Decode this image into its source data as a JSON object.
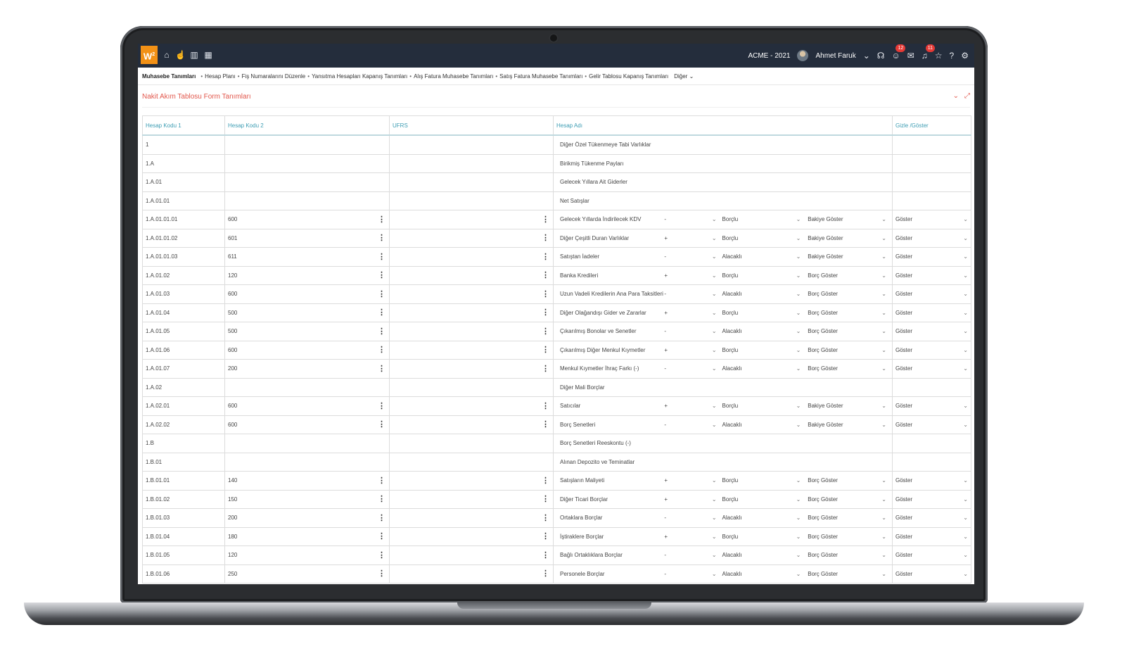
{
  "topbar": {
    "logo": "W",
    "company": "ACME - 2021",
    "user": "Ahmet Faruk",
    "badge_notifications": "12",
    "badge_messages": "11"
  },
  "nav": {
    "first": "Muhasebe Tanımları",
    "items": [
      "Hesap Planı",
      "Fiş Numaralarını Düzenle",
      "Yansıtma Hesapları Kapanış Tanımları",
      "Alış Fatura Muhasebe Tanımları",
      "Satış Fatura Muhasebe Tanımları",
      "Gelir Tablosu Kapanış Tanımları"
    ],
    "more": "Diğer"
  },
  "form": {
    "title": "Nakit Akım Tablosu Form Tanımları"
  },
  "table": {
    "headers": [
      "Hesap Kodu 1",
      "Hesap Kodu 2",
      "UFRS",
      "Hesap Adı",
      "Gizle /Göster"
    ],
    "rows": [
      {
        "k1": "1",
        "adi": "Diğer Özel Tükenmeye Tabi Varlıklar"
      },
      {
        "k1": "1.A",
        "adi": "Birikmiş Tükenme Payları"
      },
      {
        "k1": "1.A.01",
        "adi": "Gelecek Yıllara Ait Giderler"
      },
      {
        "k1": "1.A.01.01",
        "adi": "Net Satışlar"
      },
      {
        "k1": "1.A.01.01.01",
        "k2": "600",
        "adi": "Gelecek Yıllarda İndirilecek KDV",
        "sign": "-",
        "bal": "Borçlu",
        "show": "Bakiye Göster",
        "gizle": "Göster"
      },
      {
        "k1": "1.A.01.01.02",
        "k2": "601",
        "adi": "Diğer Çeşitli Duran Varlıklar",
        "sign": "+",
        "bal": "Borçlu",
        "show": "Bakiye Göster",
        "gizle": "Göster"
      },
      {
        "k1": "1.A.01.01.03",
        "k2": "611",
        "adi": "Satıştan İadeler",
        "sign": "-",
        "bal": "Alacaklı",
        "show": "Bakiye Göster",
        "gizle": "Göster"
      },
      {
        "k1": "1.A.01.02",
        "k2": "120",
        "adi": "Banka Kredileri",
        "sign": "+",
        "bal": "Borçlu",
        "show": "Borç Göster",
        "gizle": "Göster"
      },
      {
        "k1": "1.A.01.03",
        "k2": "600",
        "adi": "Uzun Vadeli Kredilerin Ana Para Taksitleri ve",
        "sign": "-",
        "bal": "Alacaklı",
        "show": "Borç Göster",
        "gizle": "Göster"
      },
      {
        "k1": "1.A.01.04",
        "k2": "500",
        "adi": "Diğer Olağandışı Gider ve Zararlar",
        "sign": "+",
        "bal": "Borçlu",
        "show": "Borç Göster",
        "gizle": "Göster"
      },
      {
        "k1": "1.A.01.05",
        "k2": "500",
        "adi": "Çıkarılmış Bonolar ve Senetler",
        "sign": "-",
        "bal": "Alacaklı",
        "show": "Borç Göster",
        "gizle": "Göster"
      },
      {
        "k1": "1.A.01.06",
        "k2": "600",
        "adi": "Çıkarılmış Diğer Menkul Kıymetler",
        "sign": "+",
        "bal": "Borçlu",
        "show": "Borç Göster",
        "gizle": "Göster"
      },
      {
        "k1": "1.A.01.07",
        "k2": "200",
        "adi": "Menkul Kıymetler İhraç Farkı (-)",
        "sign": "-",
        "bal": "Alacaklı",
        "show": "Borç Göster",
        "gizle": "Göster"
      },
      {
        "k1": "1.A.02",
        "adi": "Diğer Mali Borçlar"
      },
      {
        "k1": "1.A.02.01",
        "k2": "600",
        "adi": "Satıcılar",
        "sign": "+",
        "bal": "Borçlu",
        "show": "Bakiye Göster",
        "gizle": "Göster"
      },
      {
        "k1": "1.A.02.02",
        "k2": "600",
        "adi": "Borç Senetleri",
        "sign": "-",
        "bal": "Alacaklı",
        "show": "Bakiye Göster",
        "gizle": "Göster"
      },
      {
        "k1": "1.B",
        "adi": "Borç Senetleri Reeskontu (-)"
      },
      {
        "k1": "1.B.01",
        "adi": "Alınan Depozito ve Teminatlar"
      },
      {
        "k1": "1.B.01.01",
        "k2": "140",
        "adi": "Satışların Maliyeti",
        "sign": "+",
        "bal": "Borçlu",
        "show": "Borç Göster",
        "gizle": "Göster"
      },
      {
        "k1": "1.B.01.02",
        "k2": "150",
        "adi": "Diğer Ticari Borçlar",
        "sign": "+",
        "bal": "Borçlu",
        "show": "Borç Göster",
        "gizle": "Göster"
      },
      {
        "k1": "1.B.01.03",
        "k2": "200",
        "adi": "Ortaklara Borçlar",
        "sign": "-",
        "bal": "Alacaklı",
        "show": "Borç Göster",
        "gizle": "Göster"
      },
      {
        "k1": "1.B.01.04",
        "k2": "180",
        "adi": "İştiraklere Borçlar",
        "sign": "+",
        "bal": "Borçlu",
        "show": "Borç Göster",
        "gizle": "Göster"
      },
      {
        "k1": "1.B.01.05",
        "k2": "120",
        "adi": "Bağlı Ortaklıklara Borçlar",
        "sign": "-",
        "bal": "Alacaklı",
        "show": "Borç Göster",
        "gizle": "Göster"
      },
      {
        "k1": "1.B.01.06",
        "k2": "250",
        "adi": "Personele Borçlar",
        "sign": "-",
        "bal": "Alacaklı",
        "show": "Borç Göster",
        "gizle": "Göster"
      }
    ]
  }
}
